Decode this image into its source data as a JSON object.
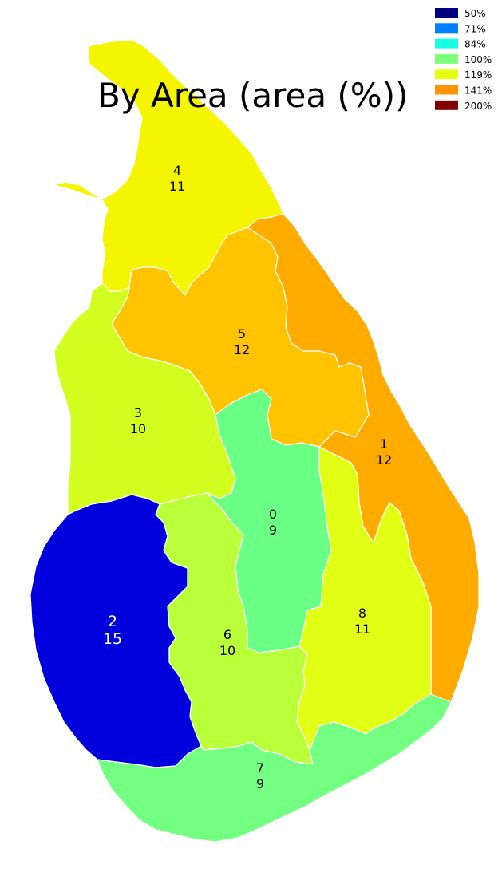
{
  "title": "By Area (area (%))",
  "legend": [
    {
      "label": "50%",
      "color": "#000080"
    },
    {
      "label": "71%",
      "color": "#0080ff"
    },
    {
      "label": "84%",
      "color": "#15ffe1"
    },
    {
      "label": "100%",
      "color": "#7dff7a"
    },
    {
      "label": "119%",
      "color": "#e4ff13"
    },
    {
      "label": "141%",
      "color": "#ff9400"
    },
    {
      "label": "200%",
      "color": "#800000"
    }
  ],
  "regions": [
    {
      "id": "0",
      "value": "9",
      "color": "#6aff85",
      "label_color": "#000000"
    },
    {
      "id": "1",
      "value": "12",
      "color": "#ffab00",
      "label_color": "#000000"
    },
    {
      "id": "2",
      "value": "15",
      "color": "#0000dd",
      "label_color": "#ffffff"
    },
    {
      "id": "3",
      "value": "10",
      "color": "#d2ff20",
      "label_color": "#000000"
    },
    {
      "id": "4",
      "value": "11",
      "color": "#f5f500",
      "label_color": "#000000"
    },
    {
      "id": "5",
      "value": "12",
      "color": "#ffc300",
      "label_color": "#000000"
    },
    {
      "id": "6",
      "value": "10",
      "color": "#b9ff3a",
      "label_color": "#000000"
    },
    {
      "id": "7",
      "value": "9",
      "color": "#72ff82",
      "label_color": "#000000"
    },
    {
      "id": "8",
      "value": "11",
      "color": "#e1ff15",
      "label_color": "#000000"
    }
  ]
}
